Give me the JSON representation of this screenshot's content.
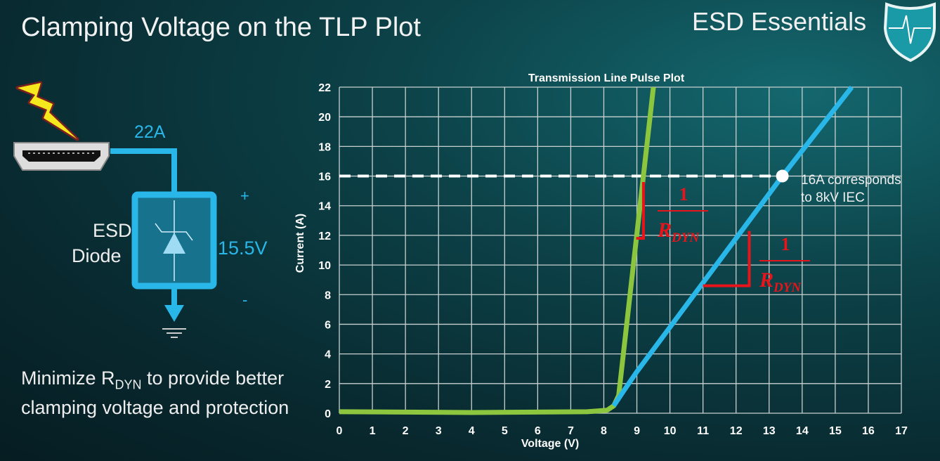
{
  "slide": {
    "title": "Clamping Voltage on the TLP Plot",
    "brand": "ESD Essentials",
    "circuit": {
      "current_label": "22A",
      "device_label_1": "ESD",
      "device_label_2": "Diode",
      "voltage_label": "15.5V",
      "plus": "+",
      "minus": "-"
    },
    "note": {
      "pre": "Minimize R",
      "sub": "DYN",
      "post": " to provide better clamping voltage and protection"
    }
  },
  "chart_data": {
    "type": "line",
    "title": "Transmission Line Pulse Plot",
    "xlabel": "Voltage (V)",
    "ylabel": "Current (A)",
    "xlim": [
      0,
      17
    ],
    "ylim": [
      0,
      22
    ],
    "xticks": [
      0,
      1,
      2,
      3,
      4,
      5,
      6,
      7,
      8,
      9,
      10,
      11,
      12,
      13,
      14,
      15,
      16,
      17
    ],
    "yticks": [
      0,
      2,
      4,
      6,
      8,
      10,
      12,
      14,
      16,
      18,
      20,
      22
    ],
    "grid": true,
    "series": [
      {
        "color": "#8cc63f",
        "x": [
          0,
          4,
          7.5,
          8.1,
          8.3,
          8.45,
          9.5
        ],
        "y": [
          0.1,
          0.05,
          0.1,
          0.2,
          0.5,
          1.2,
          22
        ]
      },
      {
        "color": "#29b6e8",
        "x": [
          8.3,
          8.6,
          9,
          13.4,
          15.5
        ],
        "y": [
          0.5,
          1.5,
          2.8,
          16,
          22
        ]
      }
    ],
    "reference_line": {
      "y": 16,
      "style": "dashed",
      "color": "#ffffff"
    },
    "marker": {
      "x": 13.4,
      "y": 16,
      "color": "#ffffff"
    },
    "annotations": [
      {
        "text": "16A corresponds to 8kV IEC",
        "line1": "16A corresponds",
        "line2": "to 8kV IEC"
      },
      {
        "numerator": "1",
        "denominator": "R",
        "sub": "DYN",
        "color": "#e8141b"
      },
      {
        "numerator": "1",
        "denominator": "R",
        "sub": "DYN",
        "color": "#e8141b"
      }
    ]
  }
}
